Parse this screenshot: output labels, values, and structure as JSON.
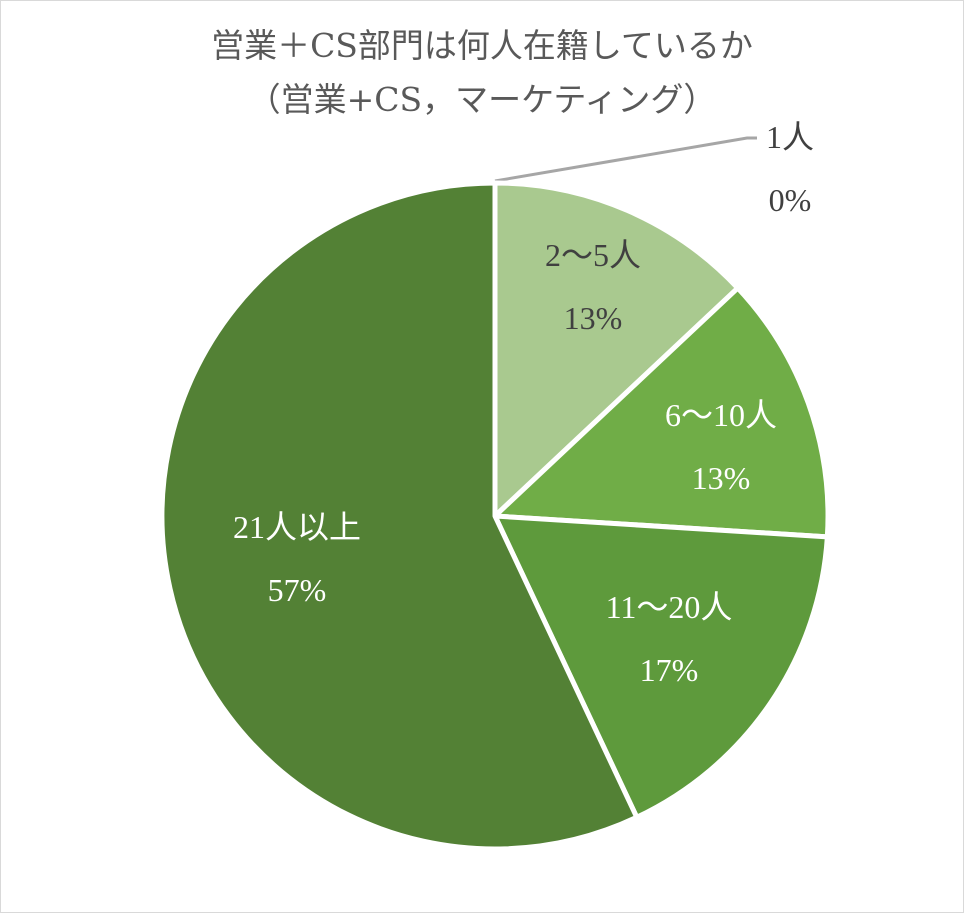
{
  "chart_data": {
    "type": "pie",
    "title": "営業＋CS部門は何人在籍しているか",
    "subtitle": "（営業+CS，マーケティング）",
    "slices": [
      {
        "label": "1人",
        "value": 0,
        "percent_label": "0%",
        "color": "#d9d9d9",
        "label_color": "#404040"
      },
      {
        "label": "2〜5人",
        "value": 13,
        "percent_label": "13%",
        "color": "#a9c98f",
        "label_color": "#404040"
      },
      {
        "label": "6〜10人",
        "value": 13,
        "percent_label": "13%",
        "color": "#70ad47",
        "label_color": "#ffffff"
      },
      {
        "label": "11〜20人",
        "value": 17,
        "percent_label": "17%",
        "color": "#5e9a3c",
        "label_color": "#ffffff"
      },
      {
        "label": "21人以上",
        "value": 57,
        "percent_label": "57%",
        "color": "#538135",
        "label_color": "#ffffff"
      }
    ],
    "start_angle_deg": 0,
    "direction": "clockwise",
    "legend": "none"
  },
  "colors": {
    "leader_line": "#a6a6a6",
    "slice_border": "#ffffff",
    "title_text": "#595959",
    "frame_border": "#d9d9d9"
  }
}
